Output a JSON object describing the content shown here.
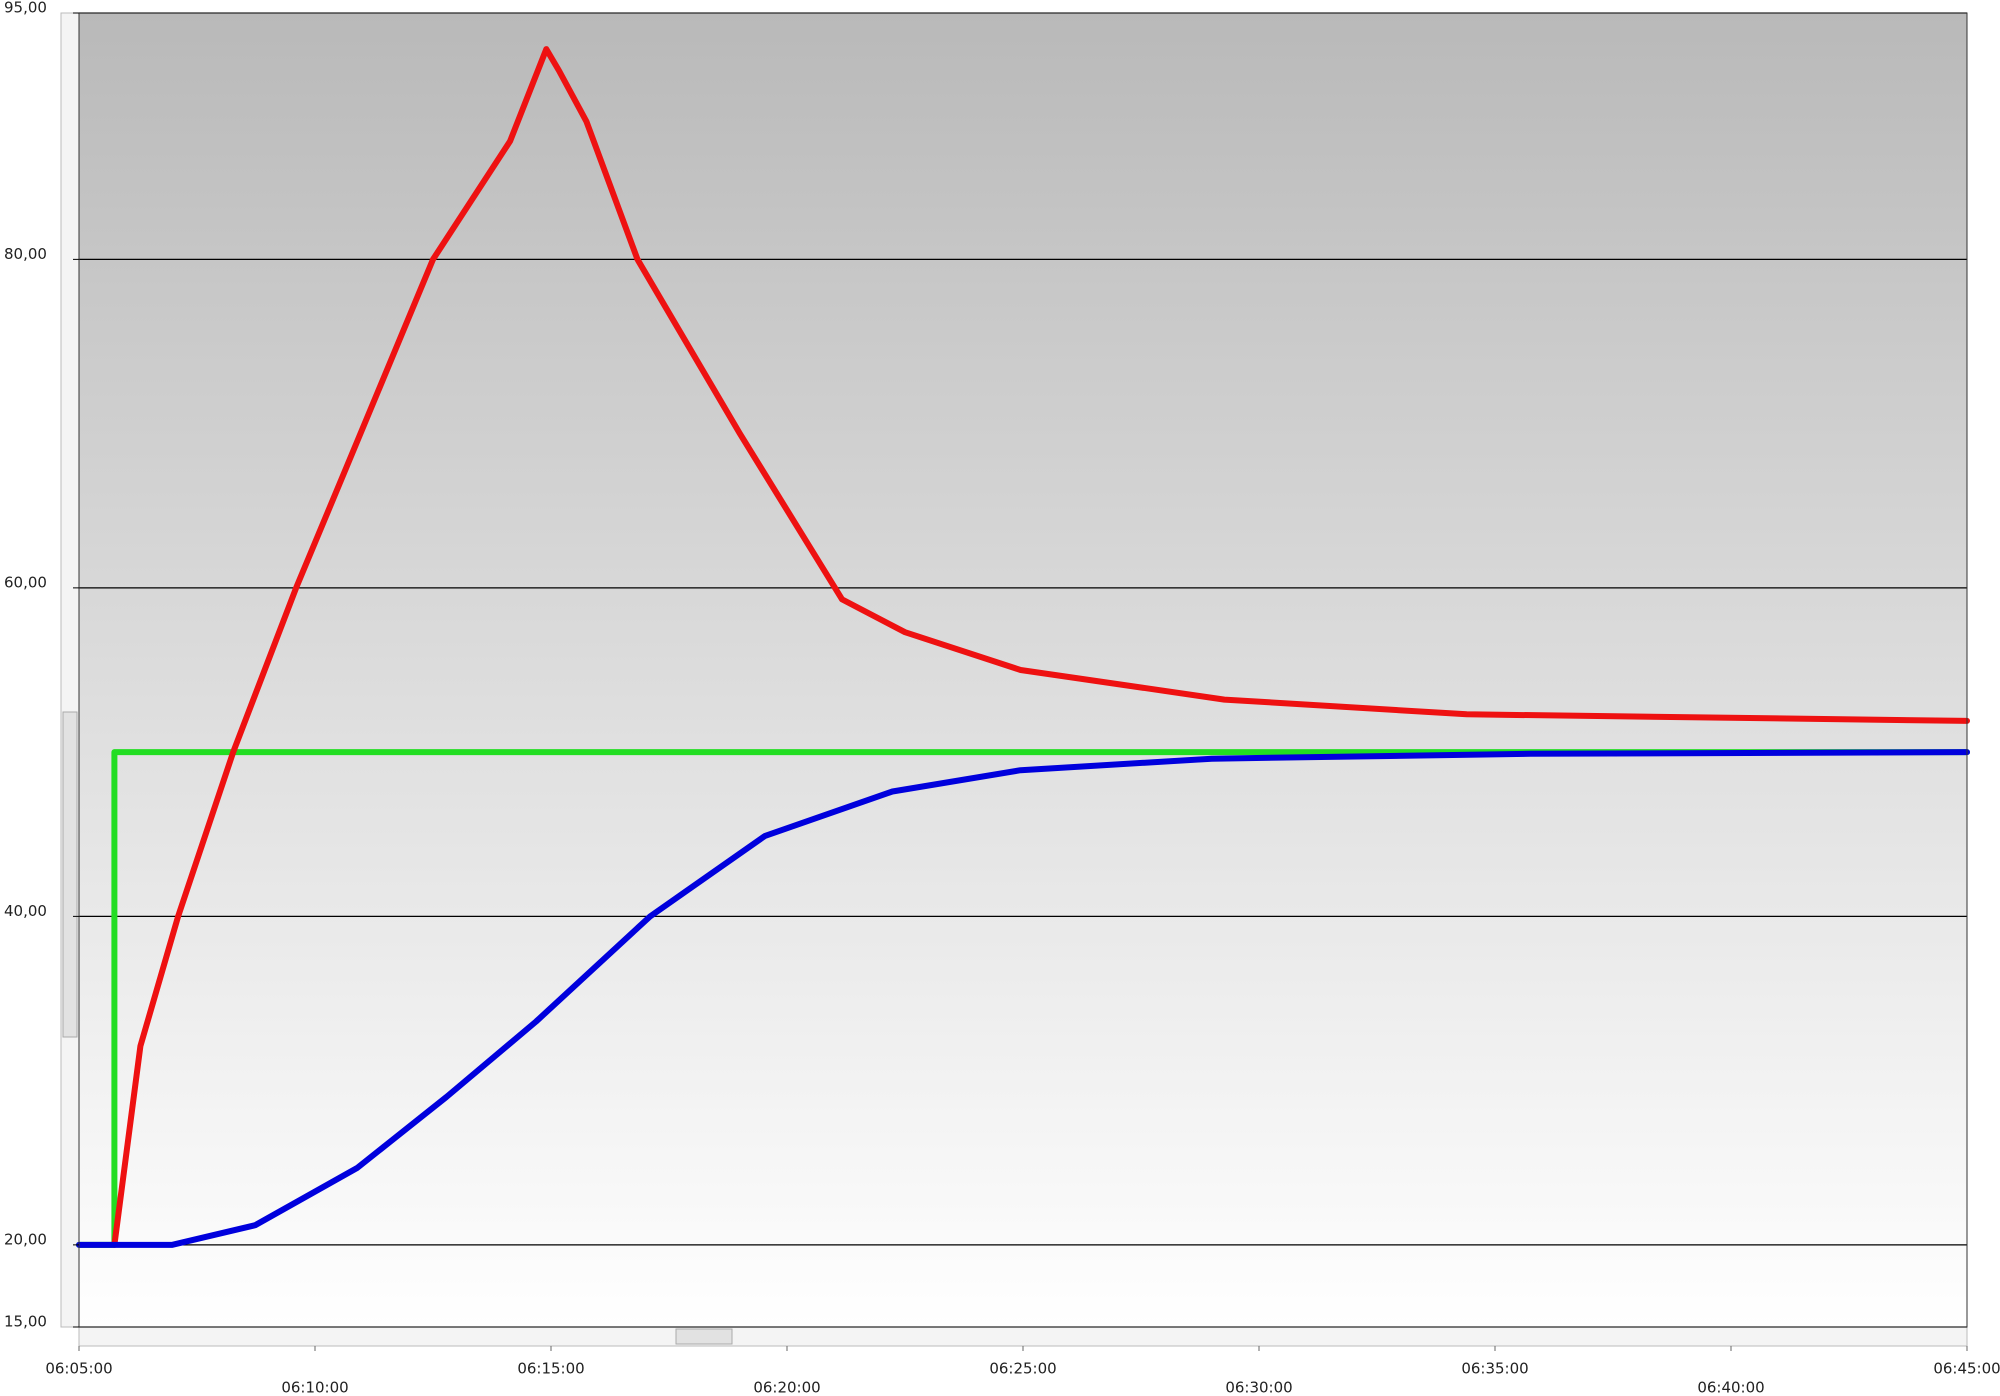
{
  "chart_data": {
    "type": "line",
    "xlim": [
      "06:05:00",
      "06:45:00"
    ],
    "xticks": [
      "06:05:00",
      "06:10:00",
      "06:15:00",
      "06:20:00",
      "06:25:00",
      "06:30:00",
      "06:35:00",
      "06:40:00",
      "06:45:00"
    ],
    "ylim": [
      15,
      95
    ],
    "yticks": [
      {
        "value": 15,
        "label": "15,00"
      },
      {
        "value": 20,
        "label": "20,00"
      },
      {
        "value": 40,
        "label": "40,00"
      },
      {
        "value": 60,
        "label": "60,00"
      },
      {
        "value": 80,
        "label": "80,00"
      },
      {
        "value": 95,
        "label": "95,00"
      }
    ],
    "grid": true,
    "series": [
      {
        "color": "#22dd22",
        "x": [
          "06:05:00",
          "06:05:45",
          "06:05:45",
          "06:45:00"
        ],
        "values": [
          20,
          20,
          50,
          50
        ]
      },
      {
        "color": "#ee1111",
        "x": [
          "06:05:45",
          "06:06:18",
          "06:07:06",
          "06:08:16",
          "06:09:36",
          "06:10:37",
          "06:12:30",
          "06:14:08",
          "06:14:54",
          "06:15:10",
          "06:15:45",
          "06:16:50",
          "06:19:00",
          "06:21:10",
          "06:22:30",
          "06:24:57",
          "06:29:16",
          "06:34:24",
          "06:45:00"
        ],
        "values": [
          20,
          32.1,
          40,
          50,
          60,
          67,
          80,
          87.2,
          92.8,
          91.5,
          88.4,
          80,
          69.4,
          59.3,
          57.3,
          55,
          53.2,
          52.3,
          51.9
        ]
      },
      {
        "color": "#0000dd",
        "x": [
          "06:05:00",
          "06:06:58",
          "06:08:44",
          "06:10:54",
          "06:12:47",
          "06:14:41",
          "06:17:06",
          "06:19:32",
          "06:22:14",
          "06:24:57",
          "06:29:00",
          "06:35:45",
          "06:45:00"
        ],
        "values": [
          20,
          20,
          21.2,
          24.7,
          29,
          33.6,
          40,
          44.9,
          47.6,
          48.9,
          49.6,
          49.9,
          50
        ]
      }
    ]
  }
}
